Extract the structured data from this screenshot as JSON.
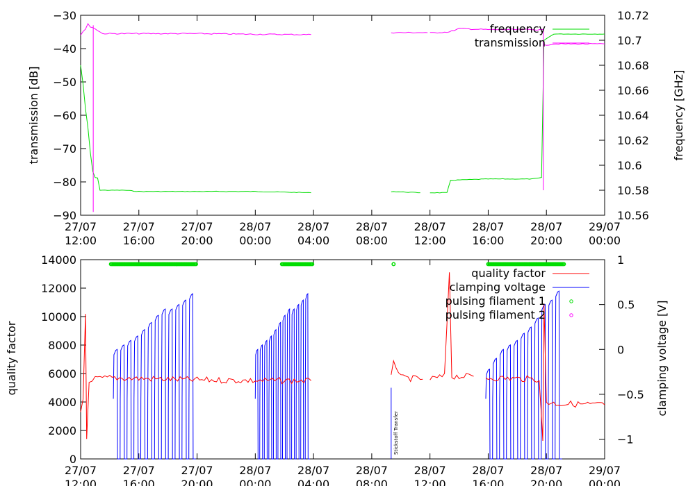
{
  "chart_data": [
    {
      "type": "line",
      "ylabel": "transmission [dB]",
      "y2label": "frequency [GHz]",
      "ylim": [
        -90,
        -30
      ],
      "y2lim": [
        10.56,
        10.72
      ],
      "xlim": [
        "27/07 12:00",
        "29/07 00:00"
      ],
      "x_tick_labels": [
        [
          "27/07",
          "12:00"
        ],
        [
          "27/07",
          "16:00"
        ],
        [
          "27/07",
          "20:00"
        ],
        [
          "28/07",
          "00:00"
        ],
        [
          "28/07",
          "04:00"
        ],
        [
          "28/07",
          "08:00"
        ],
        [
          "28/07",
          "12:00"
        ],
        [
          "28/07",
          "16:00"
        ],
        [
          "28/07",
          "20:00"
        ],
        [
          "29/07",
          "00:00"
        ]
      ],
      "y_ticks": [
        -90,
        -80,
        -70,
        -60,
        -50,
        -40,
        -30
      ],
      "y2_ticks": [
        10.56,
        10.58,
        10.6,
        10.62,
        10.64,
        10.66,
        10.68,
        10.7,
        10.72
      ],
      "legend_position": "top-right",
      "series": [
        {
          "name": "frequency",
          "axis": "y2",
          "color": "#00dd00",
          "segments": [
            [
              [
                "27/07 12:00",
                10.68
              ],
              [
                "27/07 12:10",
                10.665
              ],
              [
                "27/07 12:20",
                10.645
              ],
              [
                "27/07 12:30",
                10.63
              ],
              [
                "27/07 12:40",
                10.61
              ],
              [
                "27/07 12:50",
                10.595
              ],
              [
                "27/07 13:00",
                10.59
              ],
              [
                "27/07 13:10",
                10.59
              ],
              [
                "27/07 13:20",
                10.58
              ],
              [
                "27/07 14:00",
                10.58
              ],
              [
                "27/07 15:00",
                10.58
              ],
              [
                "27/07 16:00",
                10.579
              ],
              [
                "27/07 20:00",
                10.579
              ],
              [
                "28/07 00:00",
                10.579
              ],
              [
                "28/07 03:50",
                10.578
              ]
            ],
            [
              [
                "28/07 09:20",
                10.579
              ],
              [
                "28/07 11:20",
                10.578
              ]
            ],
            [
              [
                "28/07 12:00",
                10.578
              ],
              [
                "28/07 13:10",
                10.578
              ],
              [
                "28/07 13:25",
                10.588
              ],
              [
                "28/07 16:00",
                10.589
              ],
              [
                "28/07 19:00",
                10.589
              ],
              [
                "28/07 19:40",
                10.59
              ],
              [
                "28/07 19:50",
                10.7
              ],
              [
                "28/07 20:30",
                10.705
              ],
              [
                "29/07 00:00",
                10.705
              ]
            ]
          ]
        },
        {
          "name": "transmission",
          "axis": "y",
          "color": "#ff00ff",
          "segments": [
            [
              [
                "27/07 12:00",
                -36
              ],
              [
                "27/07 12:20",
                -34
              ],
              [
                "27/07 12:30",
                -32.5
              ],
              [
                "27/07 12:40",
                -33.5
              ],
              [
                "27/07 13:00",
                -34
              ],
              [
                "27/07 13:30",
                -35.5
              ],
              [
                "27/07 16:00",
                -35.5
              ],
              [
                "27/07 20:00",
                -35.5
              ],
              [
                "28/07 00:00",
                -35.7
              ],
              [
                "28/07 03:50",
                -35.8
              ]
            ],
            [
              [
                "28/07 09:20",
                -35.2
              ],
              [
                "28/07 11:50",
                -35.2
              ]
            ],
            [
              [
                "28/07 12:00",
                -35.3
              ],
              [
                "28/07 13:20",
                -35
              ],
              [
                "28/07 14:00",
                -34
              ],
              [
                "28/07 16:00",
                -34.3
              ],
              [
                "28/07 18:00",
                -34.3
              ],
              [
                "28/07 19:45",
                -34.3
              ]
            ],
            [
              [
                "28/07 19:50",
                -39
              ],
              [
                "28/07 20:30",
                -38.6
              ],
              [
                "29/07 00:00",
                -38.6
              ]
            ]
          ]
        }
      ]
    },
    {
      "type": "line",
      "ylabel": "quality factor",
      "y2label": "clamping voltage [V]",
      "ylim": [
        0,
        14000
      ],
      "y2lim": [
        -1.22,
        1
      ],
      "xlim": [
        "27/07 12:00",
        "29/07 00:00"
      ],
      "x_tick_labels": [
        [
          "27/07",
          "12:00"
        ],
        [
          "27/07",
          "16:00"
        ],
        [
          "27/07",
          "20:00"
        ],
        [
          "28/07",
          "00:00"
        ],
        [
          "28/07",
          "04:00"
        ],
        [
          "28/07",
          "08:00"
        ],
        [
          "28/07",
          "12:00"
        ],
        [
          "28/07",
          "16:00"
        ],
        [
          "28/07",
          "20:00"
        ],
        [
          "29/07",
          "00:00"
        ]
      ],
      "y_ticks": [
        0,
        2000,
        4000,
        6000,
        8000,
        10000,
        12000,
        14000
      ],
      "y2_ticks": [
        -1,
        -0.5,
        0,
        0.5,
        1
      ],
      "legend_position": "top-right",
      "annotations": [
        "Stickstoff Transfer"
      ],
      "series": [
        {
          "name": "quality factor",
          "axis": "y",
          "color": "#ff0000",
          "segments": [
            [
              [
                "27/07 12:00",
                3300
              ],
              [
                "27/07 12:10",
                4200
              ],
              [
                "27/07 12:20",
                10200
              ],
              [
                "27/07 12:25",
                1600
              ],
              [
                "27/07 12:35",
                5200
              ],
              [
                "27/07 13:00",
                5600
              ],
              [
                "27/07 14:00",
                5700
              ],
              [
                "27/07 16:00",
                5650
              ],
              [
                "27/07 20:00",
                5550
              ],
              [
                "28/07 00:00",
                5500
              ],
              [
                "28/07 03:50",
                5500
              ]
            ],
            [
              [
                "28/07 09:20",
                5700
              ],
              [
                "28/07 09:30",
                7000
              ],
              [
                "28/07 10:00",
                5700
              ],
              [
                "28/07 11:30",
                5600
              ]
            ],
            [
              [
                "28/07 12:00",
                5600
              ],
              [
                "28/07 13:00",
                5800
              ],
              [
                "28/07 13:20",
                13200
              ],
              [
                "28/07 13:30",
                5800
              ],
              [
                "28/07 15:00",
                5800
              ]
            ],
            [
              [
                "28/07 15:50",
                5700
              ],
              [
                "28/07 19:30",
                5600
              ],
              [
                "28/07 19:45",
                1200
              ],
              [
                "28/07 19:50",
                11000
              ],
              [
                "28/07 20:00",
                4000
              ],
              [
                "28/07 20:30",
                3900
              ],
              [
                "29/07 00:00",
                3800
              ]
            ]
          ]
        },
        {
          "name": "clamping voltage",
          "axis": "y2",
          "color": "#0000ff",
          "ramp_groups": [
            {
              "start": "27/07 14:15",
              "end": "27/07 19:55",
              "min": -1.22,
              "peaks": [
                0,
                0.05,
                0.1,
                0.15,
                0.22,
                0.3,
                0.38,
                0.45,
                0.45,
                0.5,
                0.55,
                0.62
              ]
            },
            {
              "start": "28/07 00:00",
              "end": "28/07 03:45",
              "min": -1.22,
              "peaks": [
                0,
                0.05,
                0.1,
                0.15,
                0.22,
                0.3,
                0.38,
                0.45,
                0.45,
                0.5,
                0.55,
                0.62
              ]
            },
            {
              "start": "28/07 15:50",
              "end": "28/07 21:05",
              "min": -1.22,
              "peaks": [
                -0.22,
                -0.1,
                0,
                0.05,
                0.1,
                0.18,
                0.25,
                0.35,
                0.5,
                0.55,
                0.65
              ]
            }
          ]
        },
        {
          "name": "pulsing filament 1",
          "axis": "y2",
          "color": "#00dd00",
          "value": 0.95,
          "bands": [
            [
              "27/07 14:05",
              "27/07 20:00"
            ],
            [
              "28/07 01:50",
              "28/07 03:55"
            ],
            [
              "28/07 09:30",
              "28/07 09:30"
            ],
            [
              "28/07 16:00",
              "28/07 21:15"
            ]
          ]
        },
        {
          "name": "pulsing filament 2",
          "axis": "y2",
          "color": "#ff00ff",
          "bands": []
        }
      ]
    }
  ]
}
